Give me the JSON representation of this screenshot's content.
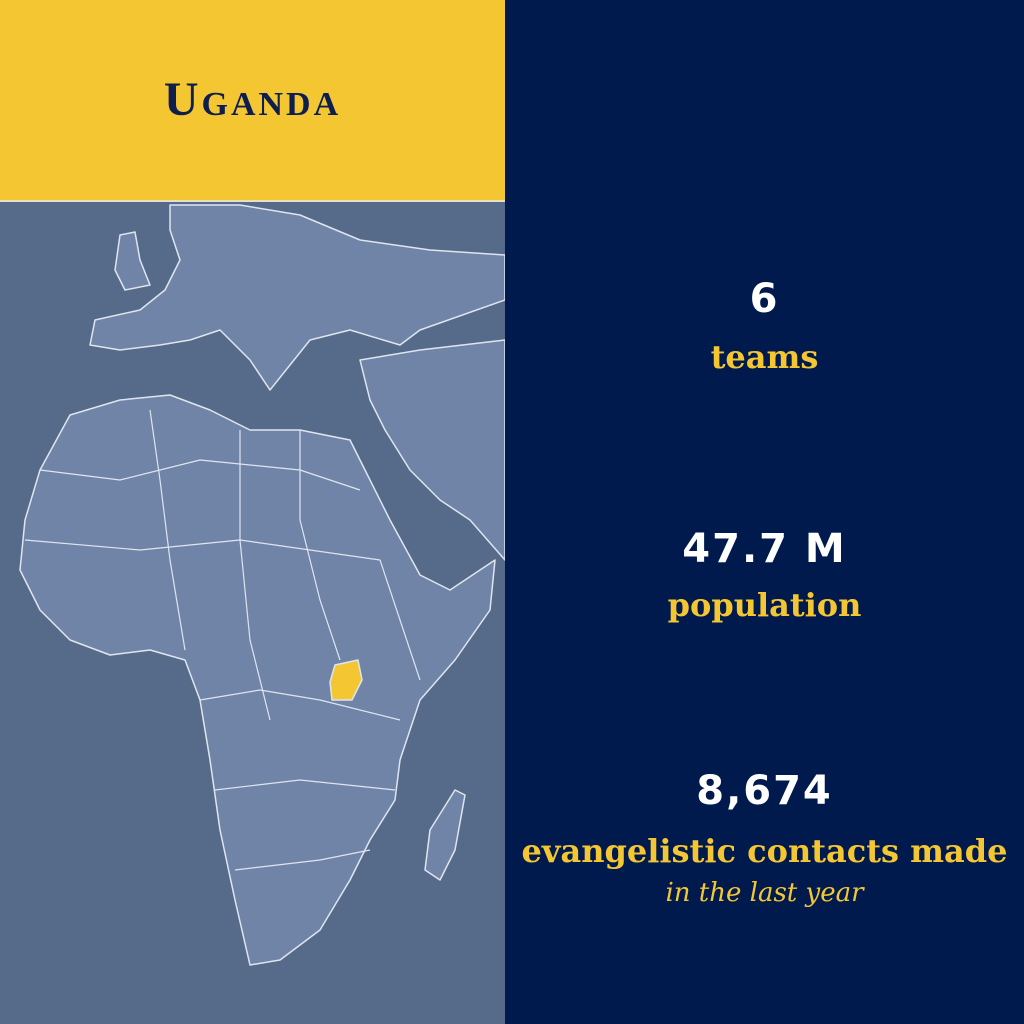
{
  "header": {
    "title": "Uganda"
  },
  "stats": [
    {
      "value": "6",
      "label": "teams"
    },
    {
      "value": "47.7 M",
      "label": "population"
    },
    {
      "value": "8,674",
      "label": "evangelistic contacts made",
      "note": "in the last year"
    }
  ]
}
